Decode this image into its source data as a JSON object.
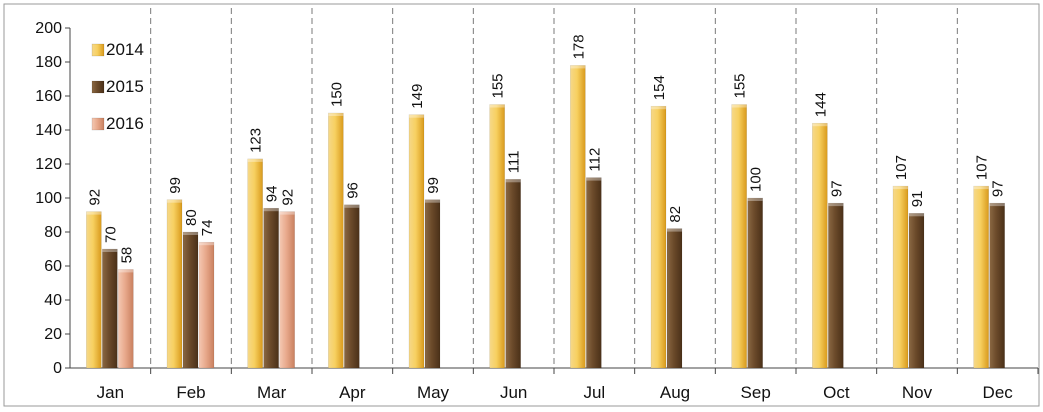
{
  "chart_data": {
    "type": "bar",
    "categories": [
      "Jan",
      "Feb",
      "Mar",
      "Apr",
      "May",
      "Jun",
      "Jul",
      "Aug",
      "Sep",
      "Oct",
      "Nov",
      "Dec"
    ],
    "series": [
      {
        "name": "2014",
        "color": "#f2c24c",
        "values": [
          92,
          99,
          123,
          150,
          149,
          155,
          178,
          154,
          155,
          144,
          107,
          107
        ]
      },
      {
        "name": "2015",
        "color": "#6b4a2a",
        "values": [
          70,
          80,
          94,
          96,
          99,
          111,
          112,
          82,
          100,
          97,
          91,
          97
        ]
      },
      {
        "name": "2016",
        "color": "#e8a98c",
        "values": [
          58,
          74,
          92,
          null,
          null,
          null,
          null,
          null,
          null,
          null,
          null,
          null
        ]
      }
    ],
    "ylim": [
      0,
      200
    ],
    "yticks": [
      0,
      20,
      40,
      60,
      80,
      100,
      120,
      140,
      160,
      180,
      200
    ],
    "legend_position": "top-left",
    "grid": "vertical dashed separators between months",
    "data_labels": true
  }
}
